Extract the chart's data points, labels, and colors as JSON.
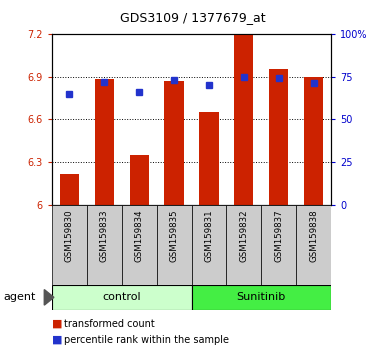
{
  "title": "GDS3109 / 1377679_at",
  "samples": [
    "GSM159830",
    "GSM159833",
    "GSM159834",
    "GSM159835",
    "GSM159831",
    "GSM159832",
    "GSM159837",
    "GSM159838"
  ],
  "bar_values": [
    6.22,
    6.88,
    6.35,
    6.87,
    6.65,
    7.2,
    6.95,
    6.9
  ],
  "percentile_values": [
    65,
    72,
    66,
    73,
    70,
    75,
    74,
    71
  ],
  "bar_color": "#cc2200",
  "percentile_color": "#2233cc",
  "y_min": 6.0,
  "y_max": 7.2,
  "y_ticks": [
    6.0,
    6.3,
    6.6,
    6.9,
    7.2
  ],
  "y_tick_labels": [
    "6",
    "6.3",
    "6.6",
    "6.9",
    "7.2"
  ],
  "right_y_ticks": [
    0,
    25,
    50,
    75,
    100
  ],
  "right_y_tick_labels": [
    "0",
    "25",
    "50",
    "75",
    "100%"
  ],
  "groups": [
    {
      "name": "control",
      "indices": [
        0,
        1,
        2,
        3
      ],
      "color": "#ccffcc"
    },
    {
      "name": "Sunitinib",
      "indices": [
        4,
        5,
        6,
        7
      ],
      "color": "#44ee44"
    }
  ],
  "plot_bg_color": "#ffffff",
  "label_row_color": "#cccccc",
  "agent_label": "agent",
  "bar_color_legend": "#cc2200",
  "pct_color_legend": "#2233cc"
}
